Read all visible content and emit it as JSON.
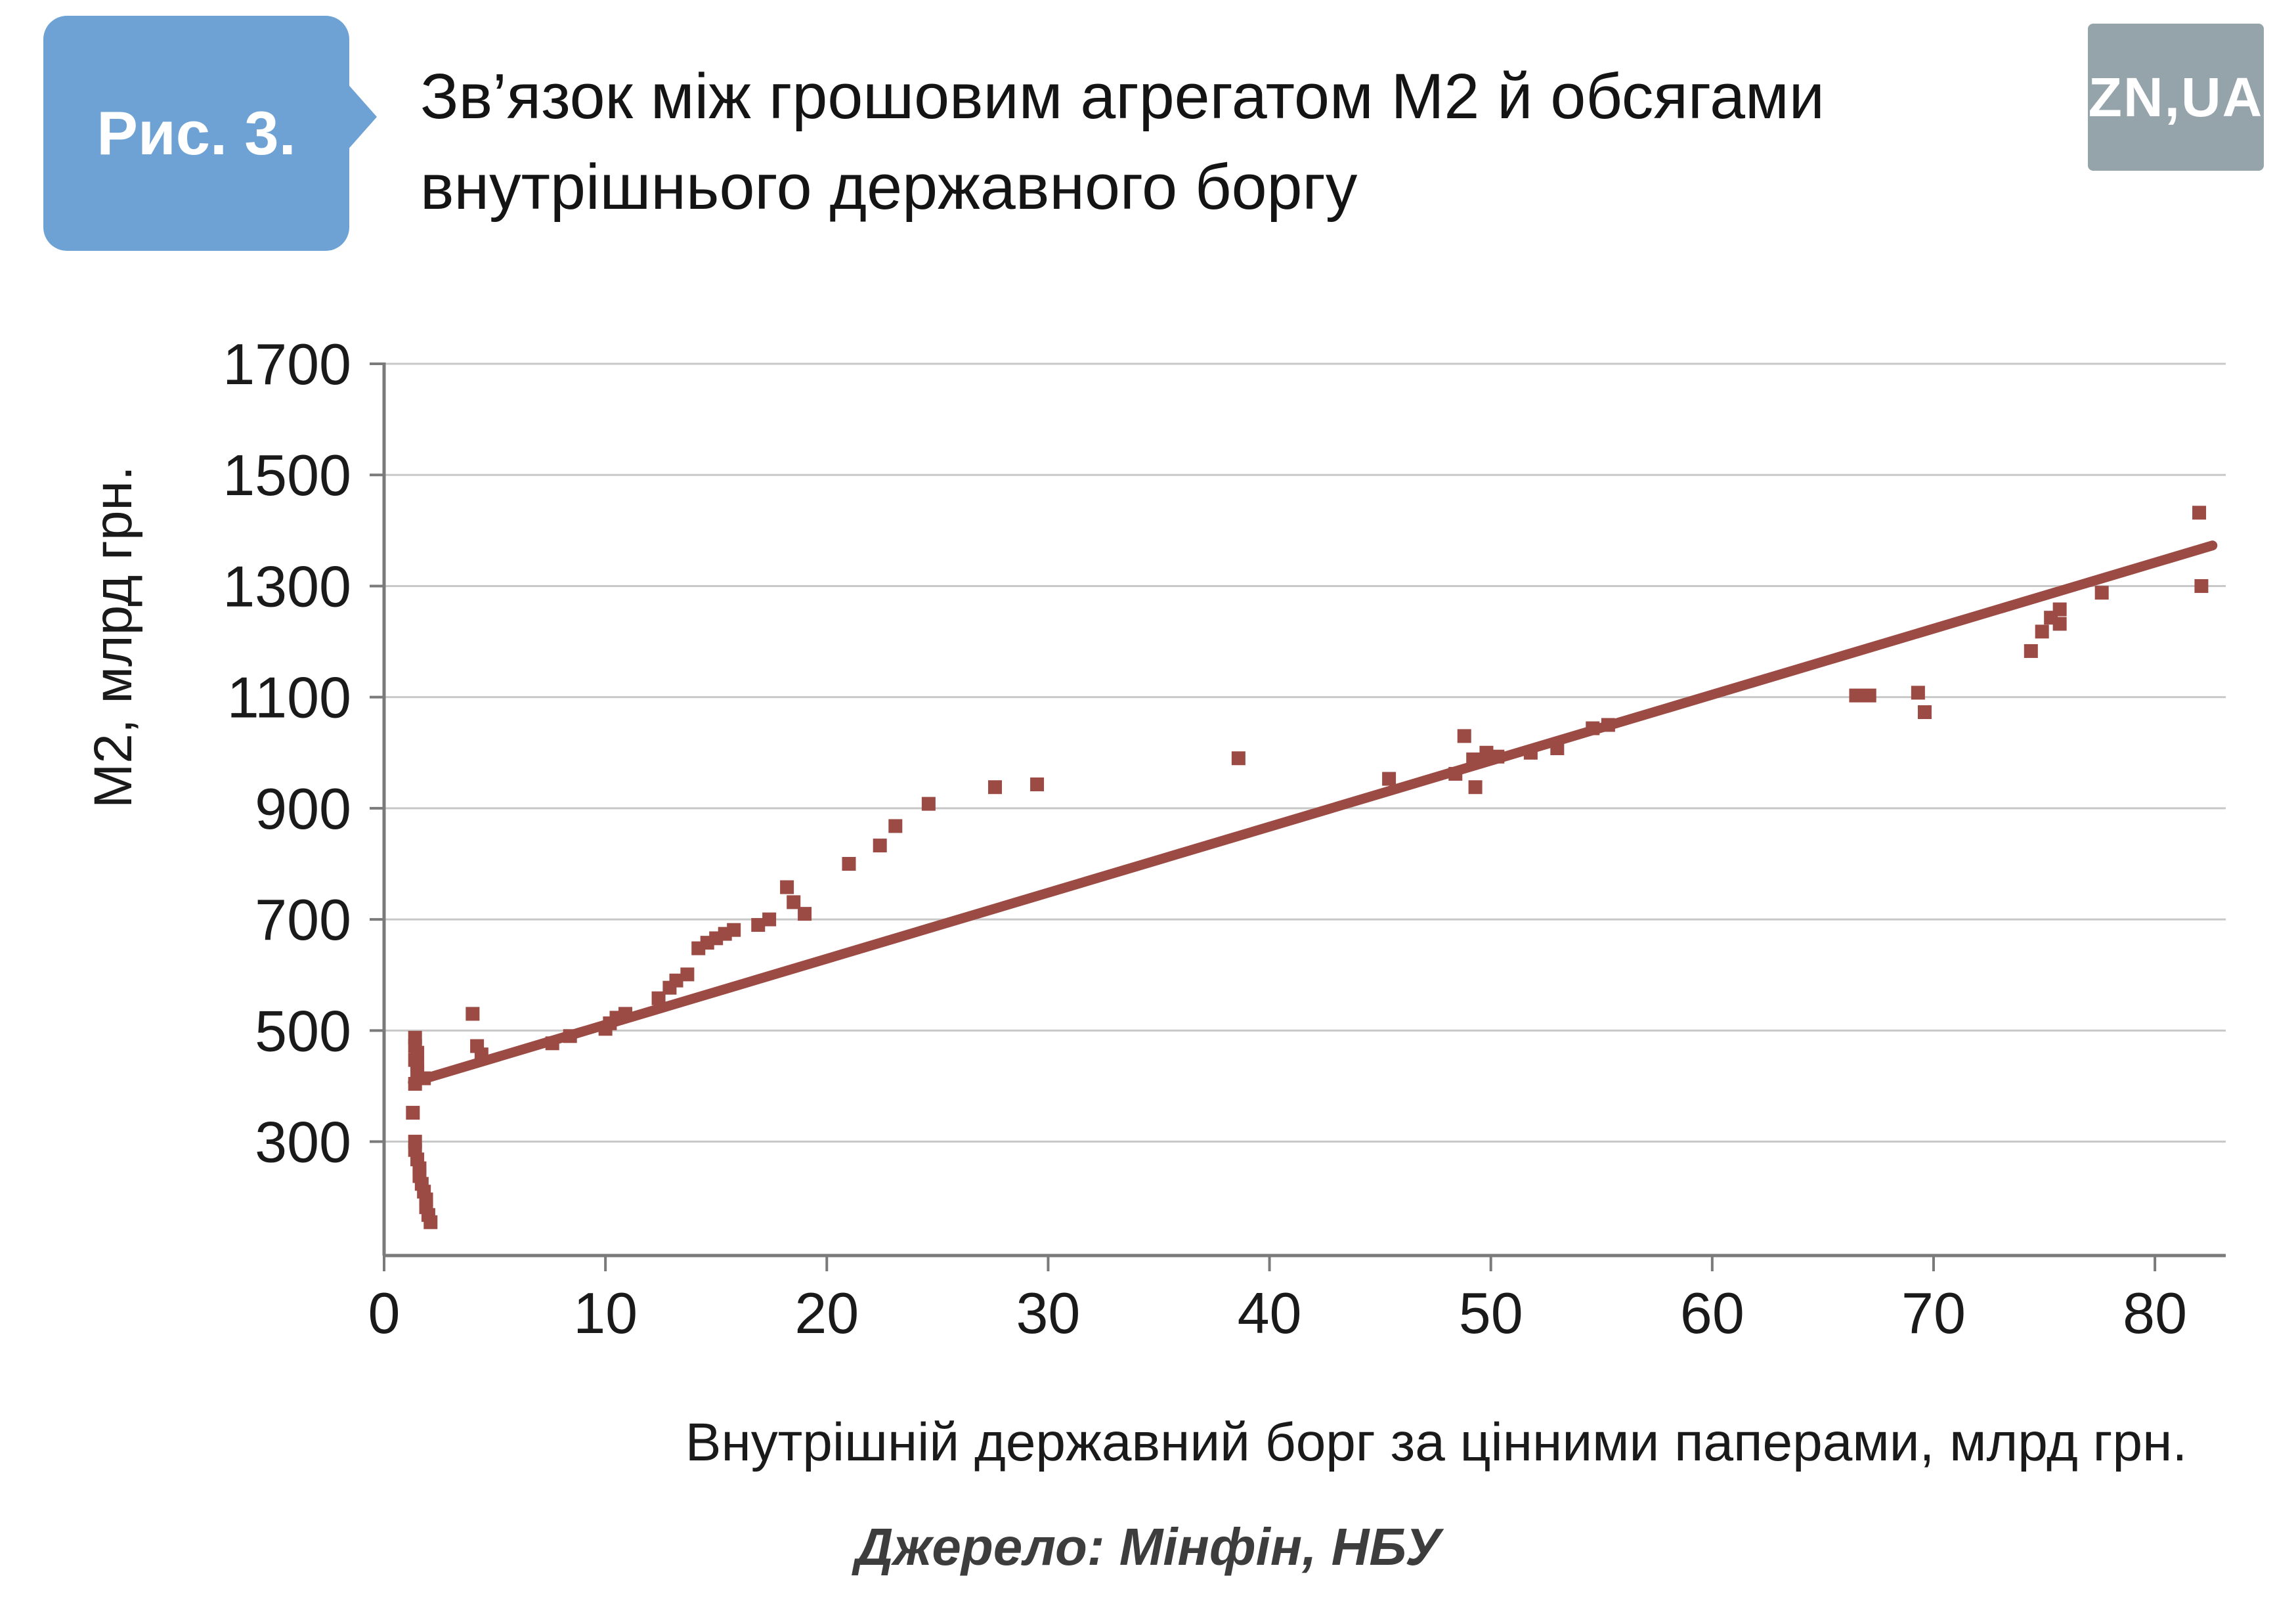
{
  "figure": {
    "label": "Рис. 3.",
    "title": "Зв’язок між грошовим агрегатом М2 й обсягами\nвнутрішнього державного боргу"
  },
  "logo": {
    "text": "ZN,UA"
  },
  "source": "Джерело: Мінфін, НБУ",
  "colors": {
    "badge_blue": "#6ea2d5",
    "logo_gray": "#95a3ab",
    "marker_red": "#9c4a44"
  },
  "chart_data": {
    "type": "scatter",
    "title": "Зв’язок між грошовим агрегатом М2 й обсягами внутрішнього державного боргу",
    "xlabel": "Внутрішній державний борг за цінними паперами, млрд грн.",
    "ylabel": "М2, млрд грн.",
    "xlim": [
      0,
      83.2
    ],
    "ylim": [
      95,
      1700
    ],
    "xticks": [
      0,
      10,
      20,
      30,
      40,
      50,
      60,
      70,
      80
    ],
    "yticks": [
      300,
      500,
      700,
      900,
      1100,
      1300,
      1500,
      1700
    ],
    "grid": true,
    "grid_color": "#c8c8c8",
    "axis_color": "#7a7a7a",
    "tick_label_color": "#1a1a1a",
    "marker_color": "#9c4a44",
    "legend": "none",
    "points": [
      [
        1.4,
        487
      ],
      [
        1.4,
        472
      ],
      [
        1.5,
        460
      ],
      [
        1.4,
        447
      ],
      [
        1.5,
        437
      ],
      [
        1.5,
        427
      ],
      [
        1.8,
        414
      ],
      [
        1.4,
        404
      ],
      [
        1.3,
        352
      ],
      [
        1.4,
        300
      ],
      [
        1.4,
        285
      ],
      [
        1.5,
        268
      ],
      [
        1.6,
        252
      ],
      [
        1.6,
        238
      ],
      [
        1.7,
        224
      ],
      [
        1.8,
        210
      ],
      [
        1.9,
        196
      ],
      [
        1.9,
        182
      ],
      [
        2.0,
        168
      ],
      [
        2.1,
        155
      ],
      [
        4.0,
        530
      ],
      [
        4.2,
        472
      ],
      [
        4.4,
        457
      ],
      [
        7.6,
        477
      ],
      [
        8.4,
        490
      ],
      [
        10.0,
        503
      ],
      [
        10.2,
        513
      ],
      [
        10.5,
        523
      ],
      [
        10.9,
        530
      ],
      [
        12.4,
        558
      ],
      [
        12.9,
        577
      ],
      [
        13.2,
        590
      ],
      [
        13.7,
        601
      ],
      [
        14.2,
        648
      ],
      [
        14.6,
        658
      ],
      [
        15.0,
        666
      ],
      [
        15.4,
        674
      ],
      [
        15.8,
        681
      ],
      [
        16.9,
        690
      ],
      [
        17.4,
        700
      ],
      [
        18.2,
        758
      ],
      [
        18.5,
        731
      ],
      [
        19.0,
        710
      ],
      [
        21.0,
        800
      ],
      [
        22.4,
        833
      ],
      [
        23.1,
        868
      ],
      [
        24.6,
        908
      ],
      [
        27.6,
        938
      ],
      [
        29.5,
        943
      ],
      [
        38.6,
        990
      ],
      [
        45.4,
        953
      ],
      [
        48.4,
        962
      ],
      [
        48.8,
        1030
      ],
      [
        49.2,
        988
      ],
      [
        49.3,
        938
      ],
      [
        49.8,
        1000
      ],
      [
        50.3,
        993
      ],
      [
        51.8,
        1000
      ],
      [
        53.0,
        1008
      ],
      [
        54.6,
        1044
      ],
      [
        55.3,
        1050
      ],
      [
        66.5,
        1103
      ],
      [
        67.1,
        1103
      ],
      [
        69.3,
        1108
      ],
      [
        69.6,
        1073
      ],
      [
        74.4,
        1183
      ],
      [
        74.9,
        1218
      ],
      [
        75.3,
        1243
      ],
      [
        75.7,
        1258
      ],
      [
        75.7,
        1232
      ],
      [
        77.6,
        1288
      ],
      [
        82.0,
        1432
      ],
      [
        82.1,
        1300
      ]
    ],
    "trendline": {
      "x1": 1.3,
      "y1": 407,
      "x2": 82.6,
      "y2": 1373
    }
  }
}
